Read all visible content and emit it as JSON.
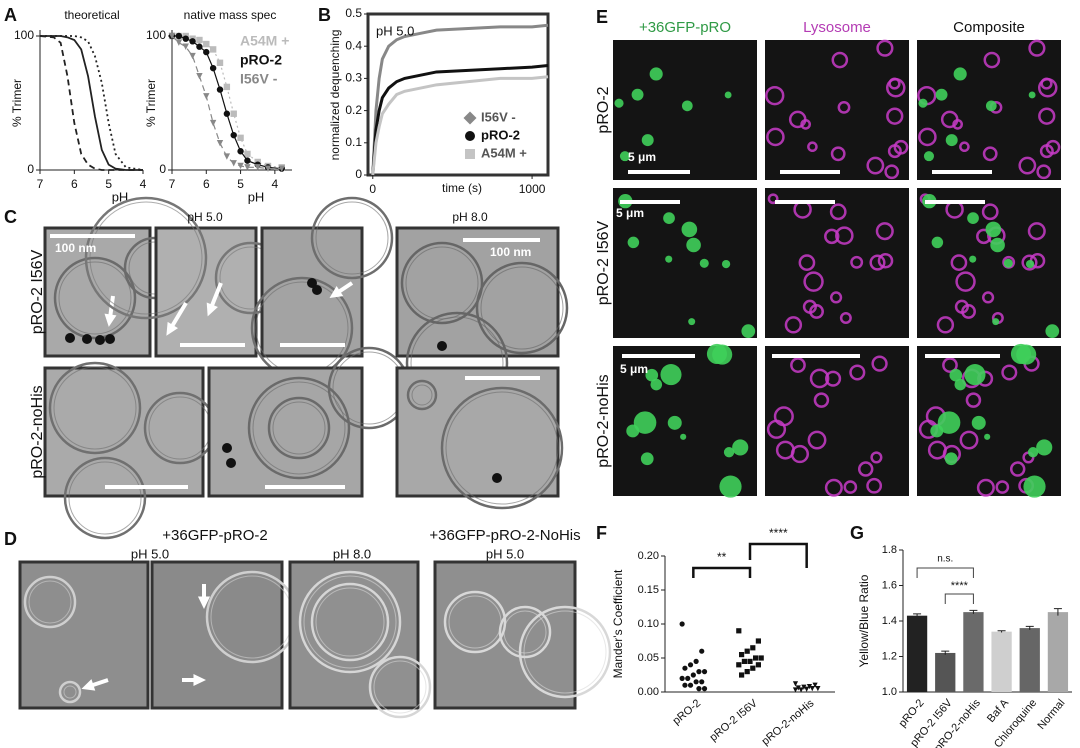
{
  "panel_labels": [
    "A",
    "B",
    "C",
    "D",
    "E",
    "F",
    "G"
  ],
  "A": {
    "theoretical": {
      "type": "line",
      "title": "theoretical",
      "xlabel": "pH",
      "ylabel": "% Trimer",
      "xlim": [
        7,
        4
      ],
      "ylim": [
        0,
        100
      ],
      "xticks": [
        7,
        6,
        5,
        4
      ],
      "yticks": [
        0,
        100
      ],
      "x": [
        7,
        6.6,
        6.4,
        6.2,
        6.0,
        5.8,
        5.6,
        5.4,
        5.2,
        5.0,
        4.8,
        4.5,
        4
      ],
      "series": [
        {
          "style": "dashed",
          "color": "#222222",
          "values": [
            100,
            99,
            95,
            70,
            35,
            12,
            4,
            1,
            0,
            0,
            0,
            0,
            0
          ]
        },
        {
          "style": "solid",
          "color": "#222222",
          "values": [
            100,
            100,
            100,
            99,
            97,
            90,
            70,
            40,
            15,
            4,
            1,
            0,
            0
          ]
        },
        {
          "style": "dotted",
          "color": "#222222",
          "values": [
            100,
            100,
            100,
            100,
            100,
            99,
            96,
            85,
            65,
            35,
            12,
            2,
            0
          ]
        }
      ]
    },
    "native": {
      "type": "line",
      "title": "native mass spec",
      "xlabel": "pH",
      "ylabel": "% Trimer",
      "xlim": [
        7,
        3.5
      ],
      "ylim": [
        0,
        100
      ],
      "xticks": [
        7,
        6,
        5,
        4
      ],
      "yticks": [
        0,
        100
      ],
      "x": [
        7,
        6.8,
        6.6,
        6.4,
        6.2,
        6.0,
        5.8,
        5.6,
        5.4,
        5.2,
        5.0,
        4.8,
        4.5,
        4.2,
        3.8
      ],
      "series": [
        {
          "name": "A54M +",
          "color": "#bbbbbb",
          "marker": "square",
          "style": "dotted",
          "values": [
            100,
            100,
            100,
            98,
            97,
            94,
            90,
            80,
            62,
            42,
            24,
            12,
            6,
            3,
            2
          ]
        },
        {
          "name": "pRO-2",
          "color": "#111111",
          "marker": "circle",
          "style": "solid",
          "values": [
            100,
            100,
            98,
            96,
            92,
            88,
            76,
            60,
            42,
            26,
            14,
            7,
            4,
            2,
            1
          ]
        },
        {
          "name": "I56V -",
          "color": "#888888",
          "marker": "triangle",
          "style": "dashed",
          "values": [
            100,
            95,
            92,
            85,
            70,
            55,
            35,
            20,
            10,
            5,
            3,
            2,
            2,
            1,
            1
          ]
        }
      ]
    }
  },
  "B": {
    "type": "line",
    "annotation": "pH 5.0",
    "xlabel": "time (s)",
    "ylabel": "normalized dequenching",
    "xlim": [
      -30,
      1100
    ],
    "ylim": [
      0,
      0.5
    ],
    "xticks": [
      0,
      1000
    ],
    "yticks": [
      0,
      0.1,
      0.2,
      0.3,
      0.4,
      0.5
    ],
    "x": [
      0,
      20,
      40,
      60,
      100,
      150,
      200,
      300,
      400,
      600,
      800,
      1000,
      1100
    ],
    "series": [
      {
        "name": "I56V -",
        "color": "#888888",
        "marker": "diamond",
        "style": "solid",
        "values": [
          0,
          0.2,
          0.3,
          0.36,
          0.4,
          0.42,
          0.43,
          0.44,
          0.45,
          0.455,
          0.46,
          0.46,
          0.465
        ]
      },
      {
        "name": "pRO-2",
        "color": "#111111",
        "marker": "circle",
        "style": "solid",
        "values": [
          0,
          0.14,
          0.2,
          0.24,
          0.27,
          0.29,
          0.3,
          0.31,
          0.32,
          0.325,
          0.33,
          0.335,
          0.34
        ]
      },
      {
        "name": "A54M +",
        "color": "#c4c4c4",
        "marker": "square",
        "style": "solid",
        "values": [
          0,
          0.1,
          0.15,
          0.19,
          0.22,
          0.25,
          0.26,
          0.27,
          0.28,
          0.29,
          0.3,
          0.3,
          0.305
        ]
      }
    ]
  },
  "C": {
    "column_labels": [
      "pH 5.0",
      "pH 8.0"
    ],
    "row_labels": [
      "pRO-2 I56V",
      "pRO-2-noHis"
    ],
    "scale_labels": [
      "100 nm",
      "100 nm"
    ]
  },
  "D": {
    "construct_labels": [
      "+36GFP-pRO-2",
      "+36GFP-pRO-2-NoHis"
    ],
    "ph_labels": [
      "pH 5.0",
      "pH 8.0",
      "pH 5.0"
    ]
  },
  "E": {
    "column_labels": [
      "+36GFP-pRO",
      "Lysosome",
      "Composite"
    ],
    "row_labels": [
      "pRO-2",
      "pRO-2 I56V",
      "pRO-2-noHis"
    ],
    "scale_labels": [
      "5 μm",
      "5 μm",
      "5 μm"
    ]
  },
  "F": {
    "type": "scatter",
    "ylabel": "Mander's Coefficient",
    "categories": [
      "pRO-2",
      "pRO-2 I56V",
      "pRO-2-noHis"
    ],
    "ylim": [
      0,
      0.2
    ],
    "yticks": [
      {
        "value": 0,
        "label": "0.00"
      },
      {
        "value": 0.05,
        "label": "0.05"
      },
      {
        "value": 0.1,
        "label": "0.10"
      },
      {
        "value": 0.15,
        "label": "0.15"
      },
      {
        "value": 0.2,
        "label": "0.20"
      }
    ],
    "series": [
      {
        "marker": "circle",
        "color": "#111111",
        "values": [
          0.1,
          0.06,
          0.045,
          0.04,
          0.035,
          0.03,
          0.03,
          0.025,
          0.02,
          0.02,
          0.015,
          0.015,
          0.01,
          0.01,
          0.005,
          0.005
        ]
      },
      {
        "marker": "square",
        "color": "#111111",
        "values": [
          0.09,
          0.075,
          0.065,
          0.06,
          0.055,
          0.05,
          0.05,
          0.045,
          0.045,
          0.04,
          0.04,
          0.035,
          0.03,
          0.025
        ]
      },
      {
        "marker": "triangle",
        "color": "#111111",
        "values": [
          0.012,
          0.01,
          0.008,
          0.007,
          0.006,
          0.005,
          0.005,
          0.004,
          0.003,
          0.003
        ]
      }
    ],
    "significance": [
      "**",
      "****"
    ]
  },
  "G": {
    "type": "bar",
    "ylabel": "Yellow/Blue Ratio",
    "categories": [
      "pRO-2",
      "pRO-2 I56V",
      "pRO-2-noHis",
      "Baf A",
      "Chloroquine",
      "Normal"
    ],
    "ylim": [
      1.0,
      1.8
    ],
    "yticks": [
      {
        "value": 1.0,
        "label": "1.0"
      },
      {
        "value": 1.2,
        "label": "1.2"
      },
      {
        "value": 1.4,
        "label": "1.4"
      },
      {
        "value": 1.6,
        "label": "1.6"
      },
      {
        "value": 1.8,
        "label": "1.8"
      }
    ],
    "values": [
      1.43,
      1.22,
      1.45,
      1.34,
      1.36,
      1.45
    ],
    "errors": [
      0.01,
      0.01,
      0.01,
      0.005,
      0.01,
      0.02
    ],
    "colors": [
      "#222222",
      "#555555",
      "#6a6a6a",
      "#cfcfcf",
      "#666666",
      "#a8a8a8"
    ],
    "significance": [
      "n.s.",
      "****"
    ]
  }
}
